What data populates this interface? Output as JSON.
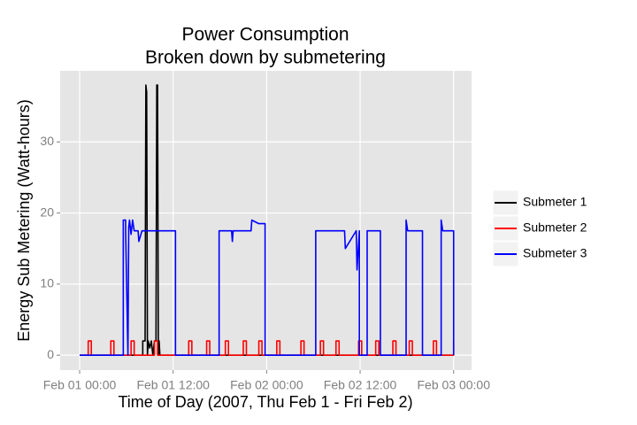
{
  "chart_data": {
    "type": "line",
    "title": "Power Consumption",
    "subtitle": "Broken down by submetering",
    "x_label": "Time of Day (2007, Thu Feb 1 - Fri Feb 2)",
    "y_label": "Energy Sub Metering (Watt-hours)",
    "xlim": [
      -2.5,
      50.3
    ],
    "ylim": [
      -2.1,
      40
    ],
    "xticks": [
      {
        "value": 0,
        "label": "Feb 01 00:00"
      },
      {
        "value": 12,
        "label": "Feb 01 12:00"
      },
      {
        "value": 24,
        "label": "Feb 02 00:00"
      },
      {
        "value": 36,
        "label": "Feb 02 12:00"
      },
      {
        "value": 48,
        "label": "Feb 03 00:00"
      }
    ],
    "yticks": [
      0,
      10,
      20,
      30
    ],
    "grid": true,
    "legend": "right",
    "series": [
      {
        "name": "Submeter 1",
        "color": "#000000",
        "x": [
          0,
          8.1,
          8.1,
          8.4,
          8.5,
          8.6,
          8.7,
          8.8,
          9.0,
          9.2,
          9.4,
          9.6,
          9.8,
          9.9,
          10.0,
          10.1,
          10.2,
          10.3,
          48
        ],
        "values": [
          0,
          0,
          2,
          2,
          38,
          37,
          0,
          2,
          1,
          2,
          0,
          2,
          2,
          38,
          38,
          0,
          2,
          0,
          0
        ]
      },
      {
        "name": "Submeter 2",
        "color": "#ff0000",
        "x": [
          0,
          1.1,
          1.1,
          1.5,
          1.5,
          4.0,
          4.0,
          4.4,
          4.4,
          6.6,
          6.6,
          7.0,
          7.0,
          9.6,
          9.6,
          10.0,
          10.0,
          14.0,
          14.0,
          14.4,
          14.4,
          16.3,
          16.3,
          16.7,
          16.7,
          18.7,
          18.7,
          19.1,
          19.1,
          21.0,
          21.0,
          21.4,
          21.4,
          23.0,
          23.0,
          23.4,
          23.4,
          25.3,
          25.3,
          25.7,
          25.7,
          28.4,
          28.4,
          28.8,
          28.8,
          30.9,
          30.9,
          31.3,
          31.3,
          32.9,
          32.9,
          33.3,
          33.3,
          35.8,
          35.8,
          36.2,
          36.2,
          38.0,
          38.0,
          38.4,
          38.4,
          40.2,
          40.2,
          40.6,
          40.6,
          42.3,
          42.3,
          42.7,
          42.7,
          45.4,
          45.4,
          45.8,
          45.8,
          48.0,
          48.0
        ],
        "values": [
          0,
          0,
          2,
          2,
          0,
          0,
          2,
          2,
          0,
          0,
          2,
          2,
          0,
          0,
          2,
          2,
          0,
          0,
          2,
          2,
          0,
          0,
          2,
          2,
          0,
          0,
          2,
          2,
          0,
          0,
          2,
          2,
          0,
          0,
          2,
          2,
          0,
          0,
          2,
          2,
          0,
          0,
          2,
          2,
          0,
          0,
          2,
          2,
          0,
          0,
          2,
          2,
          0,
          0,
          2,
          2,
          0,
          0,
          2,
          2,
          0,
          0,
          2,
          2,
          0,
          0,
          2,
          2,
          0,
          0,
          2,
          2,
          0,
          0,
          2
        ]
      },
      {
        "name": "Submeter 3",
        "color": "#0000ff",
        "x": [
          0,
          5.6,
          5.6,
          5.9,
          5.9,
          6.2,
          6.3,
          6.4,
          6.6,
          6.8,
          7.0,
          7.5,
          7.6,
          8.0,
          12.3,
          12.3,
          17.9,
          17.9,
          19.5,
          19.6,
          19.7,
          22.0,
          22.1,
          23.0,
          23.8,
          23.8,
          30.3,
          30.3,
          34.0,
          34.1,
          35.5,
          35.6,
          35.9,
          35.9,
          36.9,
          36.9,
          38.6,
          38.6,
          41.9,
          41.9,
          42.1,
          42.2,
          44.0,
          44.0,
          46.4,
          46.4,
          46.6,
          46.7,
          48.0,
          48.0
        ],
        "values": [
          0,
          0,
          19,
          19,
          17.5,
          0,
          18,
          19,
          17,
          19,
          17.5,
          17.5,
          16,
          17.5,
          17.5,
          0,
          0,
          17.5,
          17.5,
          16,
          17.5,
          17.5,
          19,
          18.5,
          18.5,
          0,
          0,
          17.5,
          17.5,
          15,
          17.5,
          12,
          17.5,
          0,
          0,
          17.5,
          17.5,
          0,
          0,
          19,
          17.5,
          17.5,
          17.5,
          0,
          0,
          19,
          17.5,
          17.5,
          17.5,
          0
        ]
      }
    ]
  }
}
